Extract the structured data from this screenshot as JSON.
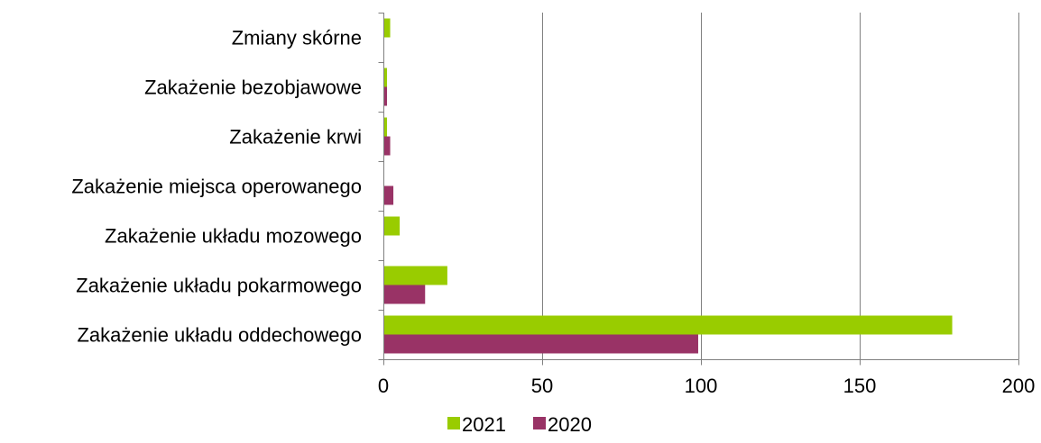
{
  "chart_data": {
    "type": "bar",
    "orientation": "horizontal",
    "categories": [
      "Zmiany skórne",
      "Zakażenie bezobjawowe",
      "Zakażenie krwi",
      "Zakażenie miejsca operowanego",
      "Zakażenie układu mozowego",
      "Zakażenie układu pokarmowego",
      "Zakażenie układu oddechowego"
    ],
    "category_labels": [
      "Zmiany skórne",
      "Zakażenie bezobjawowe",
      "Zakażenie krwi",
      "Zakażenie miejsca operowanego",
      "Zakażenie układu mozowego",
      "Zakażenie układu pokarmowego",
      "Zakażenie układu oddechowego"
    ],
    "series": [
      {
        "name": "2021",
        "color": "#99cc00",
        "values": [
          2,
          1,
          1,
          0,
          5,
          20,
          179
        ]
      },
      {
        "name": "2020",
        "color": "#993366",
        "values": [
          0,
          1,
          2,
          3,
          0,
          13,
          99
        ]
      }
    ],
    "xlim": [
      0,
      200
    ],
    "xticks": [
      0,
      50,
      100,
      150,
      200
    ],
    "grid": true,
    "legend_position": "bottom"
  }
}
